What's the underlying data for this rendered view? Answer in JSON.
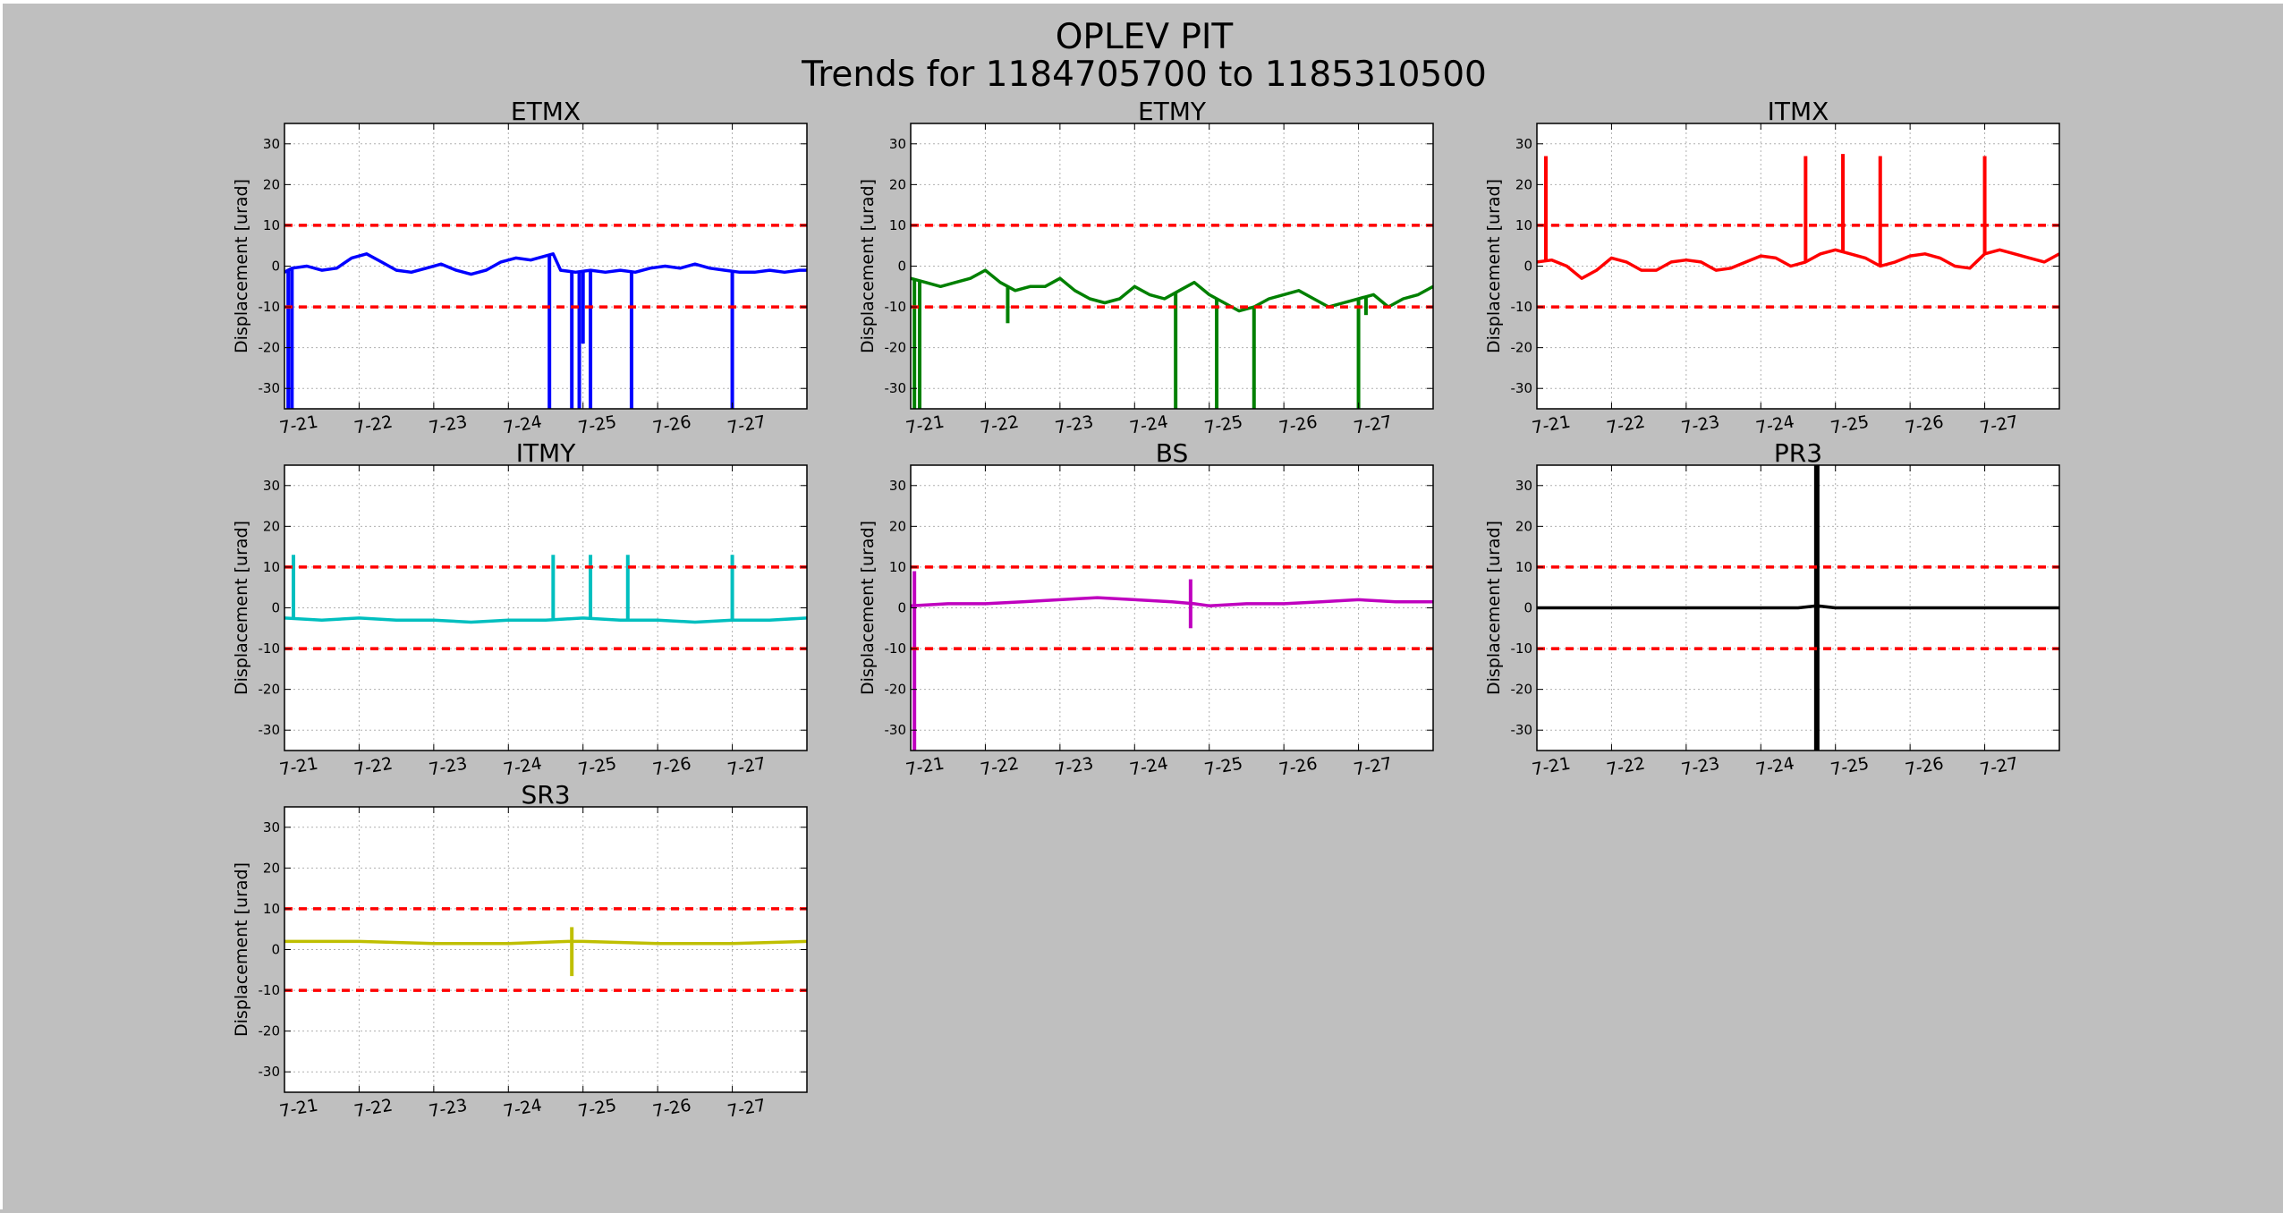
{
  "figure": {
    "title": "OPLEV PIT",
    "subtitle": "Trends for 1184705700 to 1185310500"
  },
  "chart_data": [
    {
      "type": "line",
      "title": "ETMX",
      "ylabel": "Displacement [urad]",
      "ylim": [
        -35,
        35
      ],
      "yticks": [
        -30,
        -20,
        -10,
        0,
        10,
        20,
        30
      ],
      "xlim": [
        0,
        7
      ],
      "xticks": [
        "7-21",
        "7-22",
        "7-23",
        "7-24",
        "7-25",
        "7-26",
        "7-27"
      ],
      "grid": true,
      "color": "#0000ff",
      "threshold_color": "#ff0000",
      "thresholds": [
        10,
        -10
      ],
      "series": [
        {
          "x": [
            0,
            0.1,
            0.3,
            0.5,
            0.7,
            0.9,
            1.1,
            1.3,
            1.5,
            1.7,
            1.9,
            2.1,
            2.3,
            2.5,
            2.7,
            2.9,
            3.1,
            3.3,
            3.5,
            3.6,
            3.7,
            3.9,
            4.1,
            4.3,
            4.5,
            4.7,
            4.9,
            5.1,
            5.3,
            5.5,
            5.7,
            5.9,
            6.1,
            6.3,
            6.5,
            6.7,
            6.9,
            7.0
          ],
          "y": [
            -1.5,
            -0.5,
            0,
            -1,
            -0.5,
            2,
            3,
            1,
            -1,
            -1.5,
            -0.5,
            0.5,
            -1,
            -2,
            -1,
            1,
            2,
            1.5,
            2.5,
            3,
            -1,
            -1.5,
            -1,
            -1.5,
            -1,
            -1.5,
            -0.5,
            0,
            -0.5,
            0.5,
            -0.5,
            -1,
            -1.5,
            -1.5,
            -1,
            -1.5,
            -1,
            -1
          ]
        }
      ],
      "spikes": [
        {
          "x": 0.05,
          "y": -35
        },
        {
          "x": 0.1,
          "y": -35
        },
        {
          "x": 3.55,
          "y": -35
        },
        {
          "x": 3.85,
          "y": -35
        },
        {
          "x": 3.95,
          "y": -35
        },
        {
          "x": 4.0,
          "y": -19
        },
        {
          "x": 4.1,
          "y": -35
        },
        {
          "x": 4.65,
          "y": -35
        },
        {
          "x": 6.0,
          "y": -35
        }
      ]
    },
    {
      "type": "line",
      "title": "ETMY",
      "ylabel": "Displacement [urad]",
      "ylim": [
        -35,
        35
      ],
      "yticks": [
        -30,
        -20,
        -10,
        0,
        10,
        20,
        30
      ],
      "xlim": [
        0,
        7
      ],
      "xticks": [
        "7-21",
        "7-22",
        "7-23",
        "7-24",
        "7-25",
        "7-26",
        "7-27"
      ],
      "grid": true,
      "color": "#008000",
      "threshold_color": "#ff0000",
      "thresholds": [
        10,
        -10
      ],
      "series": [
        {
          "x": [
            0,
            0.2,
            0.4,
            0.6,
            0.8,
            1.0,
            1.2,
            1.4,
            1.6,
            1.8,
            2.0,
            2.2,
            2.4,
            2.6,
            2.8,
            3.0,
            3.2,
            3.4,
            3.6,
            3.8,
            4.0,
            4.2,
            4.4,
            4.6,
            4.8,
            5.0,
            5.2,
            5.4,
            5.6,
            5.8,
            6.0,
            6.2,
            6.4,
            6.6,
            6.8,
            7.0
          ],
          "y": [
            -3,
            -4,
            -5,
            -4,
            -3,
            -1,
            -4,
            -6,
            -5,
            -5,
            -3,
            -6,
            -8,
            -9,
            -8,
            -5,
            -7,
            -8,
            -6,
            -4,
            -7,
            -9,
            -11,
            -10,
            -8,
            -7,
            -6,
            -8,
            -10,
            -9,
            -8,
            -7,
            -10,
            -8,
            -7,
            -5
          ]
        }
      ],
      "spikes": [
        {
          "x": 0.05,
          "y": -35
        },
        {
          "x": 0.12,
          "y": -35
        },
        {
          "x": 1.3,
          "y": -14
        },
        {
          "x": 3.55,
          "y": -35
        },
        {
          "x": 4.1,
          "y": -35
        },
        {
          "x": 4.6,
          "y": -35
        },
        {
          "x": 6.0,
          "y": -35
        },
        {
          "x": 6.1,
          "y": -12
        }
      ]
    },
    {
      "type": "line",
      "title": "ITMX",
      "ylabel": "Displacement [urad]",
      "ylim": [
        -35,
        35
      ],
      "yticks": [
        -30,
        -20,
        -10,
        0,
        10,
        20,
        30
      ],
      "xlim": [
        0,
        7
      ],
      "xticks": [
        "7-21",
        "7-22",
        "7-23",
        "7-24",
        "7-25",
        "7-26",
        "7-27"
      ],
      "grid": true,
      "color": "#ff0000",
      "threshold_color": "#ff0000",
      "thresholds": [
        10,
        -10
      ],
      "series": [
        {
          "x": [
            0,
            0.2,
            0.4,
            0.6,
            0.8,
            1.0,
            1.2,
            1.4,
            1.6,
            1.8,
            2.0,
            2.2,
            2.4,
            2.6,
            2.8,
            3.0,
            3.2,
            3.4,
            3.6,
            3.8,
            4.0,
            4.2,
            4.4,
            4.6,
            4.8,
            5.0,
            5.2,
            5.4,
            5.6,
            5.8,
            6.0,
            6.2,
            6.4,
            6.6,
            6.8,
            7.0
          ],
          "y": [
            1,
            1.5,
            0,
            -3,
            -1,
            2,
            1,
            -1,
            -1,
            1,
            1.5,
            1,
            -1,
            -0.5,
            1,
            2.5,
            2,
            0,
            1,
            3,
            4,
            3,
            2,
            0,
            1,
            2.5,
            3,
            2,
            0,
            -0.5,
            3,
            4,
            3,
            2,
            1,
            3
          ]
        }
      ],
      "spikes": [
        {
          "x": 0.12,
          "y": 27
        },
        {
          "x": 3.6,
          "y": 27
        },
        {
          "x": 4.1,
          "y": 27.5
        },
        {
          "x": 4.6,
          "y": 27
        },
        {
          "x": 6.0,
          "y": 27
        }
      ]
    },
    {
      "type": "line",
      "title": "ITMY",
      "ylabel": "Displacement [urad]",
      "ylim": [
        -35,
        35
      ],
      "yticks": [
        -30,
        -20,
        -10,
        0,
        10,
        20,
        30
      ],
      "xlim": [
        0,
        7
      ],
      "xticks": [
        "7-21",
        "7-22",
        "7-23",
        "7-24",
        "7-25",
        "7-26",
        "7-27"
      ],
      "grid": true,
      "color": "#00bfbf",
      "threshold_color": "#ff0000",
      "thresholds": [
        10,
        -10
      ],
      "series": [
        {
          "x": [
            0,
            0.5,
            1.0,
            1.5,
            2.0,
            2.5,
            3.0,
            3.5,
            4.0,
            4.5,
            5.0,
            5.5,
            6.0,
            6.5,
            7.0
          ],
          "y": [
            -2.5,
            -3,
            -2.5,
            -3,
            -3,
            -3.5,
            -3,
            -3,
            -2.5,
            -3,
            -3,
            -3.5,
            -3,
            -3,
            -2.5
          ]
        }
      ],
      "spikes": [
        {
          "x": 0.12,
          "y": 13
        },
        {
          "x": 3.6,
          "y": 13
        },
        {
          "x": 4.1,
          "y": 13
        },
        {
          "x": 4.6,
          "y": 13
        },
        {
          "x": 6.0,
          "y": 13
        }
      ]
    },
    {
      "type": "line",
      "title": "BS",
      "ylabel": "Displacement [urad]",
      "ylim": [
        -35,
        35
      ],
      "yticks": [
        -30,
        -20,
        -10,
        0,
        10,
        20,
        30
      ],
      "xlim": [
        0,
        7
      ],
      "xticks": [
        "7-21",
        "7-22",
        "7-23",
        "7-24",
        "7-25",
        "7-26",
        "7-27"
      ],
      "grid": true,
      "color": "#bf00bf",
      "threshold_color": "#ff0000",
      "thresholds": [
        10,
        -10
      ],
      "series": [
        {
          "x": [
            0,
            0.5,
            1.0,
            1.5,
            2.0,
            2.5,
            3.0,
            3.5,
            3.8,
            4.0,
            4.5,
            5.0,
            5.5,
            6.0,
            6.5,
            7.0
          ],
          "y": [
            0.5,
            1,
            1,
            1.5,
            2,
            2.5,
            2,
            1.5,
            1,
            0.5,
            1,
            1,
            1.5,
            2,
            1.5,
            1.5
          ]
        }
      ],
      "spikes": [
        {
          "x": 0.05,
          "y": -35
        },
        {
          "x": 0.05,
          "y": 9
        },
        {
          "x": 3.75,
          "y": 7
        },
        {
          "x": 3.75,
          "y": -5
        }
      ]
    },
    {
      "type": "line",
      "title": "PR3",
      "ylabel": "Displacement [urad]",
      "ylim": [
        -35,
        35
      ],
      "yticks": [
        -30,
        -20,
        -10,
        0,
        10,
        20,
        30
      ],
      "xlim": [
        0,
        7
      ],
      "xticks": [
        "7-21",
        "7-22",
        "7-23",
        "7-24",
        "7-25",
        "7-26",
        "7-27"
      ],
      "grid": true,
      "color": "#000000",
      "threshold_color": "#ff0000",
      "thresholds": [
        10,
        -10
      ],
      "series": [
        {
          "x": [
            0,
            1,
            2,
            3,
            3.5,
            3.75,
            4,
            5,
            6,
            7
          ],
          "y": [
            0,
            0,
            0,
            0,
            0,
            0.5,
            0,
            0,
            0,
            0
          ]
        }
      ],
      "spikes": [
        {
          "x": 3.75,
          "y": 35
        },
        {
          "x": 3.75,
          "y": -35
        }
      ]
    },
    {
      "type": "line",
      "title": "SR3",
      "ylabel": "Displacement [urad]",
      "ylim": [
        -35,
        35
      ],
      "yticks": [
        -30,
        -20,
        -10,
        0,
        10,
        20,
        30
      ],
      "xlim": [
        0,
        7
      ],
      "xticks": [
        "7-21",
        "7-22",
        "7-23",
        "7-24",
        "7-25",
        "7-26",
        "7-27"
      ],
      "grid": true,
      "color": "#bfbf00",
      "threshold_color": "#ff0000",
      "thresholds": [
        10,
        -10
      ],
      "series": [
        {
          "x": [
            0,
            1,
            2,
            3,
            3.8,
            4,
            5,
            6,
            7
          ],
          "y": [
            2,
            2,
            1.5,
            1.5,
            2,
            2,
            1.5,
            1.5,
            2
          ]
        }
      ],
      "spikes": [
        {
          "x": 3.85,
          "y": 5.5
        },
        {
          "x": 3.85,
          "y": -6.5
        }
      ]
    }
  ]
}
